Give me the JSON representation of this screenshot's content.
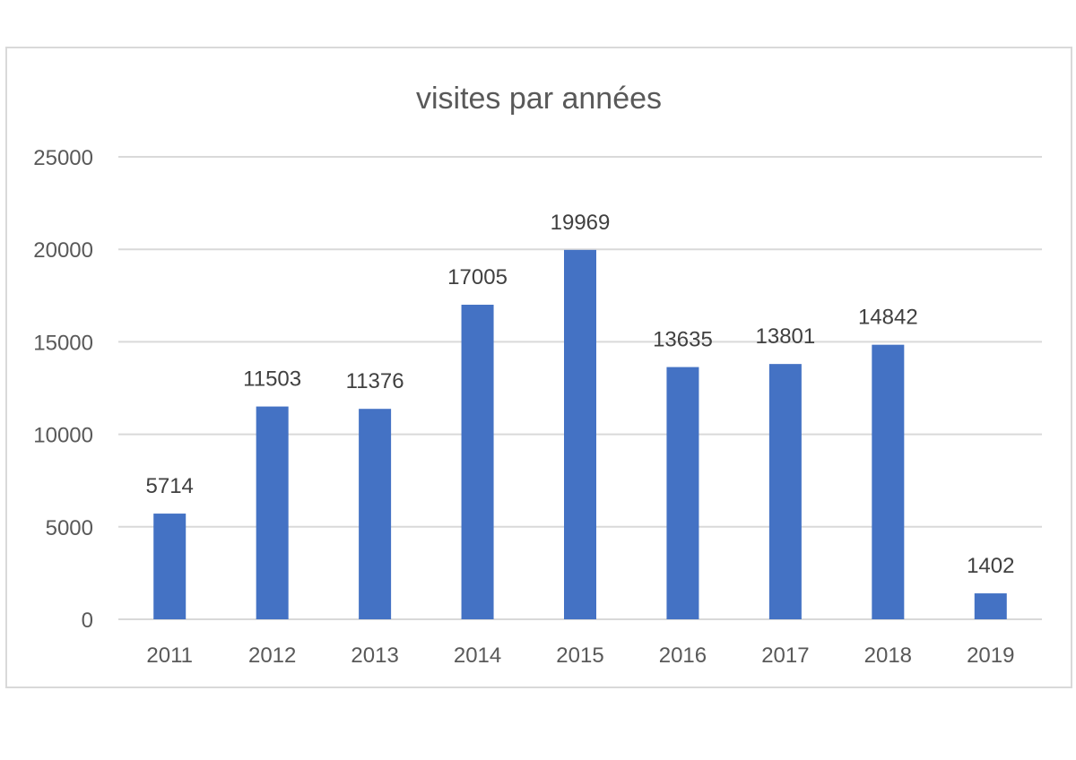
{
  "chart_data": {
    "type": "bar",
    "title": "visites par années",
    "xlabel": "",
    "ylabel": "",
    "categories": [
      "2011",
      "2012",
      "2013",
      "2014",
      "2015",
      "2016",
      "2017",
      "2018",
      "2019"
    ],
    "values": [
      5714,
      11503,
      11376,
      17005,
      19969,
      13635,
      13801,
      14842,
      1402
    ],
    "data_labels": [
      "5714",
      "11503",
      "11376",
      "17005",
      "19969",
      "13635",
      "13801",
      "14842",
      "1402"
    ],
    "ylim": [
      0,
      25000
    ],
    "yticks": [
      0,
      5000,
      10000,
      15000,
      20000,
      25000
    ],
    "ytick_labels": [
      "0",
      "5000",
      "10000",
      "15000",
      "20000",
      "25000"
    ],
    "grid": true,
    "legend": "none",
    "bar_color": "#4472C4",
    "grid_color": "#D9D9D9",
    "text_color": "#595959"
  }
}
